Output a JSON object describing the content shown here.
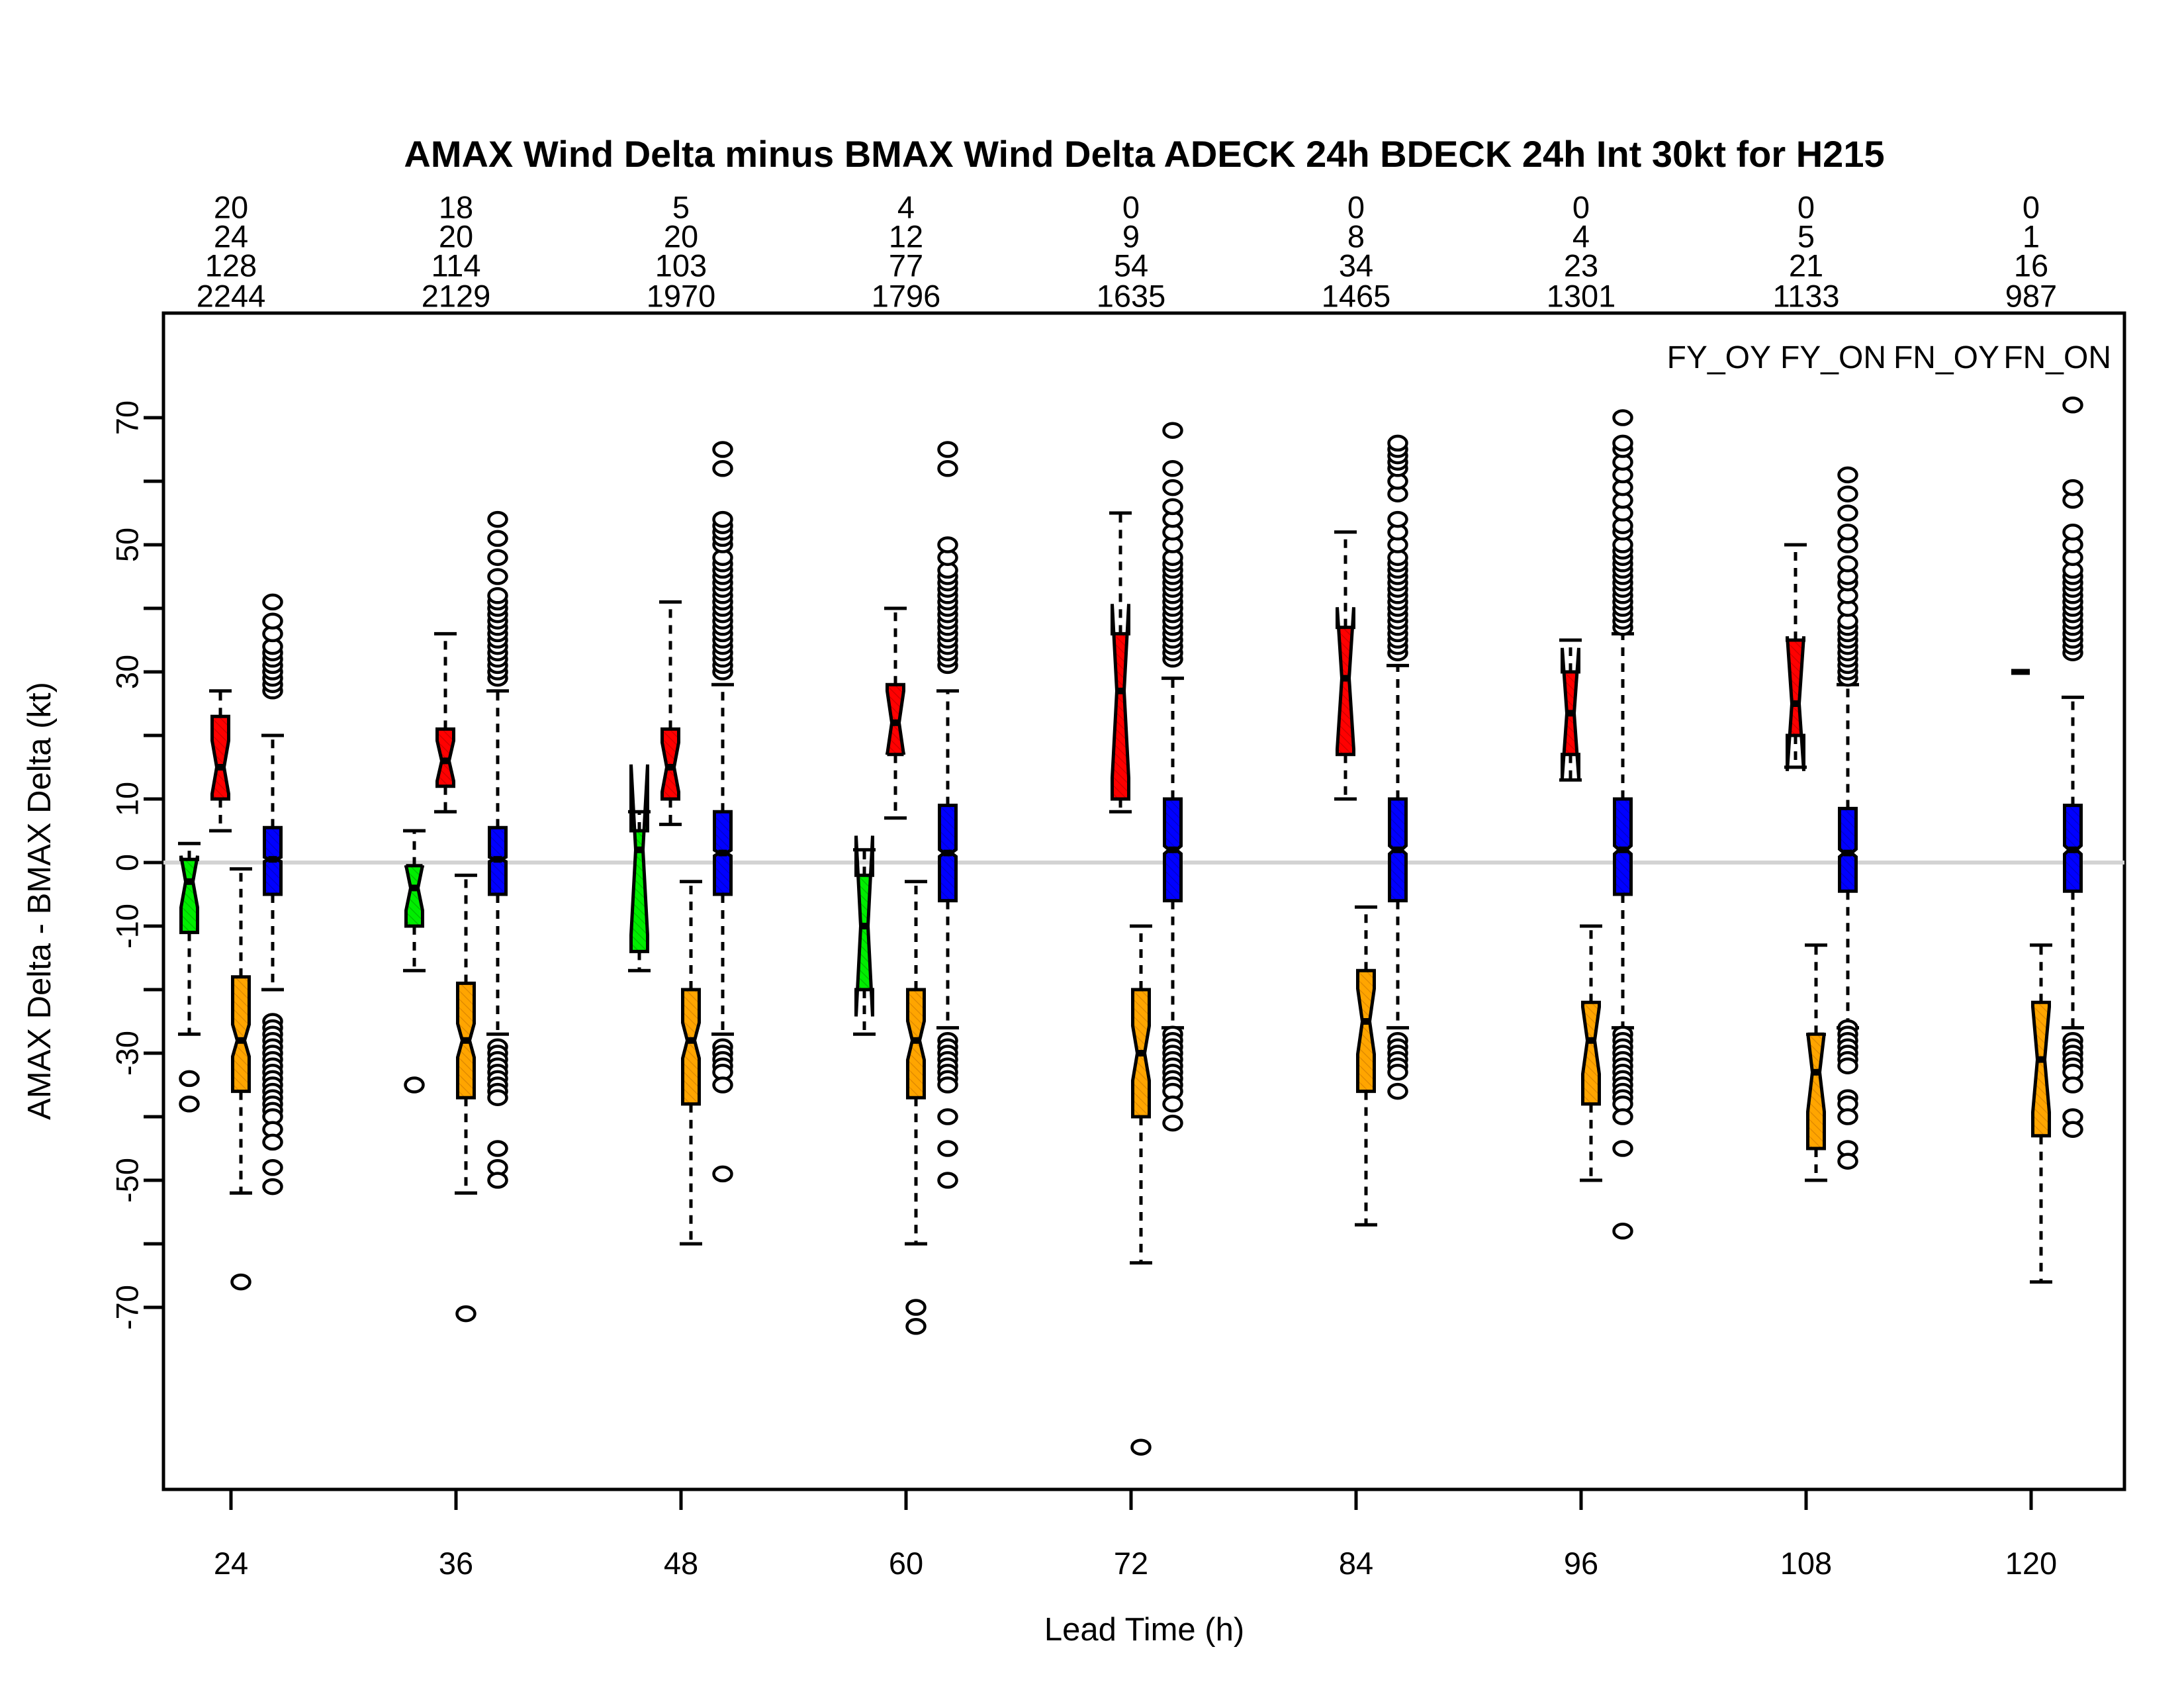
{
  "title": "AMAX Wind Delta minus BMAX Wind Delta ADECK 24h BDECK 24h Int 30kt for H215",
  "axes": {
    "x": {
      "label": "Lead Time (h)",
      "ticks": [
        24,
        36,
        48,
        60,
        72,
        84,
        96,
        108,
        120
      ]
    },
    "y": {
      "label": "AMAX Delta - BMAX Delta (kt)",
      "tick_values": [
        -70,
        -60,
        -50,
        -40,
        -30,
        -20,
        -10,
        0,
        10,
        20,
        30,
        40,
        50,
        60,
        70
      ],
      "labeled_ticks": [
        -70,
        -50,
        -30,
        -10,
        0,
        10,
        30,
        50,
        70
      ]
    }
  },
  "legend": {
    "items": [
      {
        "label": "FY_OY",
        "color": "#00EE00"
      },
      {
        "label": "FY_ON",
        "color": "#FF0000"
      },
      {
        "label": "FN_OY",
        "color": "#FFA500"
      },
      {
        "label": "FN_ON",
        "color": "#0000FF"
      }
    ]
  },
  "colors": {
    "zero_line": "#D3D3D3",
    "box_border": "#000000",
    "background": "#FFFFFF"
  },
  "chart_data": {
    "type": "boxplot",
    "title": "AMAX Wind Delta minus BMAX Wind Delta ADECK 24h BDECK 24h Int 30kt for H215",
    "xlabel": "Lead Time (h)",
    "ylabel": "AMAX Delta - BMAX Delta (kt)",
    "ylim": [
      -98,
      86
    ],
    "categories": [
      24,
      36,
      48,
      60,
      72,
      84,
      96,
      108,
      120
    ],
    "series": [
      {
        "name": "FY_OY",
        "color": "#00EE00",
        "dark": "#00BB00",
        "offset": -63,
        "counts": [
          20,
          18,
          5,
          4,
          0,
          0,
          0,
          0,
          0
        ],
        "boxes": [
          {
            "lo": -27,
            "q1": -11,
            "med": -3,
            "q3": 0.5,
            "hi": 3,
            "out": [
              -34,
              -38
            ]
          },
          {
            "lo": -17,
            "q1": -10,
            "med": -4,
            "q3": -0.5,
            "hi": 5,
            "out": [
              -35
            ]
          },
          {
            "lo": -17,
            "q1": -14,
            "med": 2,
            "q3": 5,
            "hi": 8,
            "out": []
          },
          {
            "lo": -27,
            "q1": -20,
            "med": -10,
            "q3": -2,
            "hi": 2,
            "out": []
          },
          null,
          null,
          null,
          null,
          null
        ]
      },
      {
        "name": "FY_ON",
        "color": "#FF0000",
        "dark": "#CC0000",
        "offset": -16,
        "counts": [
          24,
          20,
          20,
          12,
          9,
          8,
          4,
          5,
          1
        ],
        "boxes": [
          {
            "lo": 5,
            "q1": 10,
            "med": 15,
            "q3": 23,
            "hi": 27,
            "out": []
          },
          {
            "lo": 8,
            "q1": 12,
            "med": 16,
            "q3": 21,
            "hi": 36,
            "out": []
          },
          {
            "lo": 6,
            "q1": 10,
            "med": 15,
            "q3": 21,
            "hi": 41,
            "out": []
          },
          {
            "lo": 7,
            "q1": 17,
            "med": 22,
            "q3": 28,
            "hi": 40,
            "out": []
          },
          {
            "lo": 8,
            "q1": 10,
            "med": 27,
            "q3": 36,
            "hi": 55,
            "out": []
          },
          {
            "lo": 10,
            "q1": 17,
            "med": 29,
            "q3": 37,
            "hi": 52,
            "out": []
          },
          {
            "lo": 13,
            "q1": 17,
            "med": 23.5,
            "q3": 30,
            "hi": 35,
            "out": []
          },
          {
            "lo": 15,
            "q1": 20,
            "med": 25,
            "q3": 35,
            "hi": 50,
            "out": []
          },
          {
            "single": 30
          }
        ]
      },
      {
        "name": "FN_OY",
        "color": "#FFA500",
        "dark": "#DD8800",
        "offset": 15,
        "counts": [
          128,
          114,
          103,
          77,
          54,
          34,
          23,
          21,
          16
        ],
        "boxes": [
          {
            "lo": -52,
            "q1": -36,
            "med": -28,
            "q3": -18,
            "hi": -1,
            "out": [
              -66
            ]
          },
          {
            "lo": -52,
            "q1": -37,
            "med": -28,
            "q3": -19,
            "hi": -2,
            "out": [
              -71
            ]
          },
          {
            "lo": -60,
            "q1": -38,
            "med": -28,
            "q3": -20,
            "hi": -3,
            "out": []
          },
          {
            "lo": -60,
            "q1": -37,
            "med": -28,
            "q3": -20,
            "hi": -3,
            "out": [
              -70,
              -73
            ]
          },
          {
            "lo": -63,
            "q1": -40,
            "med": -30,
            "q3": -20,
            "hi": -10,
            "out": [
              -92
            ]
          },
          {
            "lo": -57,
            "q1": -36,
            "med": -25,
            "q3": -17,
            "hi": -7,
            "out": []
          },
          {
            "lo": -50,
            "q1": -38,
            "med": -28,
            "q3": -22,
            "hi": -10,
            "out": []
          },
          {
            "lo": -50,
            "q1": -45,
            "med": -33,
            "q3": -27,
            "hi": -13,
            "out": []
          },
          {
            "lo": -66,
            "q1": -43,
            "med": -31,
            "q3": -22,
            "hi": -13,
            "out": []
          }
        ]
      },
      {
        "name": "FN_ON",
        "color": "#0000FF",
        "dark": "#0000CC",
        "offset": 63,
        "counts": [
          2244,
          2129,
          1970,
          1796,
          1635,
          1465,
          1301,
          1133,
          987
        ],
        "boxes": [
          {
            "lo": -20,
            "q1": -5,
            "med": 0.5,
            "q3": 5.5,
            "hi": 20,
            "out": [
              27,
              28,
              29,
              30,
              31,
              32,
              33,
              34,
              36,
              38,
              41,
              -25,
              -26,
              -27,
              -28,
              -29,
              -30,
              -31,
              -32,
              -33,
              -34,
              -35,
              -36,
              -37,
              -38,
              -39,
              -40,
              -42,
              -44,
              -48,
              -51
            ]
          },
          {
            "lo": -27,
            "q1": -5,
            "med": 0.5,
            "q3": 5.5,
            "hi": 27,
            "out": [
              29,
              30,
              31,
              32,
              33,
              34,
              35,
              36,
              37,
              38,
              39,
              40,
              41,
              42,
              45,
              48,
              51,
              54,
              -29,
              -30,
              -31,
              -32,
              -33,
              -34,
              -35,
              -36,
              -37,
              -45,
              -48,
              -50
            ]
          },
          {
            "lo": -27,
            "q1": -5,
            "med": 1.5,
            "q3": 8,
            "hi": 28,
            "out": [
              30,
              31,
              32,
              33,
              34,
              35,
              36,
              37,
              38,
              39,
              40,
              41,
              42,
              43,
              44,
              45,
              46,
              47,
              48,
              50,
              51,
              52,
              53,
              54,
              62,
              65,
              -29,
              -30,
              -31,
              -32,
              -33,
              -35,
              -49
            ]
          },
          {
            "lo": -26,
            "q1": -6,
            "med": 1.5,
            "q3": 9,
            "hi": 27,
            "out": [
              31,
              32,
              33,
              34,
              35,
              36,
              37,
              38,
              39,
              40,
              41,
              42,
              43,
              44,
              45,
              46,
              48,
              50,
              62,
              65,
              -28,
              -29,
              -30,
              -31,
              -32,
              -33,
              -34,
              -35,
              -40,
              -45,
              -50
            ]
          },
          {
            "lo": -26,
            "q1": -6,
            "med": 2,
            "q3": 10,
            "hi": 29,
            "out": [
              32,
              33,
              34,
              35,
              36,
              37,
              38,
              39,
              40,
              41,
              42,
              43,
              44,
              45,
              46,
              47,
              48,
              50,
              52,
              54,
              56,
              59,
              62,
              68,
              -27,
              -28,
              -29,
              -30,
              -31,
              -32,
              -33,
              -34,
              -35,
              -36,
              -38,
              -41
            ]
          },
          {
            "lo": -26,
            "q1": -6,
            "med": 2,
            "q3": 10,
            "hi": 31,
            "out": [
              33,
              34,
              35,
              36,
              37,
              38,
              39,
              40,
              41,
              42,
              43,
              44,
              45,
              46,
              47,
              48,
              50,
              52,
              54,
              58,
              60,
              62,
              63,
              64,
              65,
              66,
              -28,
              -29,
              -30,
              -31,
              -32,
              -33,
              -36
            ]
          },
          {
            "lo": -26,
            "q1": -5,
            "med": 2,
            "q3": 10,
            "hi": 36,
            "out": [
              37,
              38,
              39,
              40,
              41,
              42,
              43,
              44,
              45,
              46,
              47,
              48,
              49,
              50,
              52,
              53,
              55,
              57,
              59,
              61,
              63,
              65,
              66,
              70,
              -27,
              -28,
              -29,
              -30,
              -31,
              -32,
              -33,
              -34,
              -35,
              -36,
              -37,
              -38,
              -40,
              -45,
              -58
            ]
          },
          {
            "lo": -26,
            "q1": -4.5,
            "med": 1.5,
            "q3": 8.5,
            "hi": 28,
            "out": [
              29,
              30,
              31,
              32,
              33,
              34,
              35,
              36,
              37,
              38,
              40,
              42,
              44,
              45,
              47,
              50,
              52,
              55,
              58,
              61,
              -26,
              -27,
              -28,
              -29,
              -30,
              -31,
              -32,
              -37,
              -38,
              -40,
              -45,
              -47
            ]
          },
          {
            "lo": -26,
            "q1": -4.5,
            "med": 2,
            "q3": 9,
            "hi": 26,
            "out": [
              33,
              34,
              35,
              36,
              37,
              38,
              39,
              40,
              41,
              42,
              43,
              44,
              45,
              46,
              48,
              50,
              52,
              57,
              59,
              72,
              -28,
              -29,
              -30,
              -31,
              -32,
              -33,
              -35,
              -40,
              -42
            ]
          }
        ]
      }
    ]
  }
}
